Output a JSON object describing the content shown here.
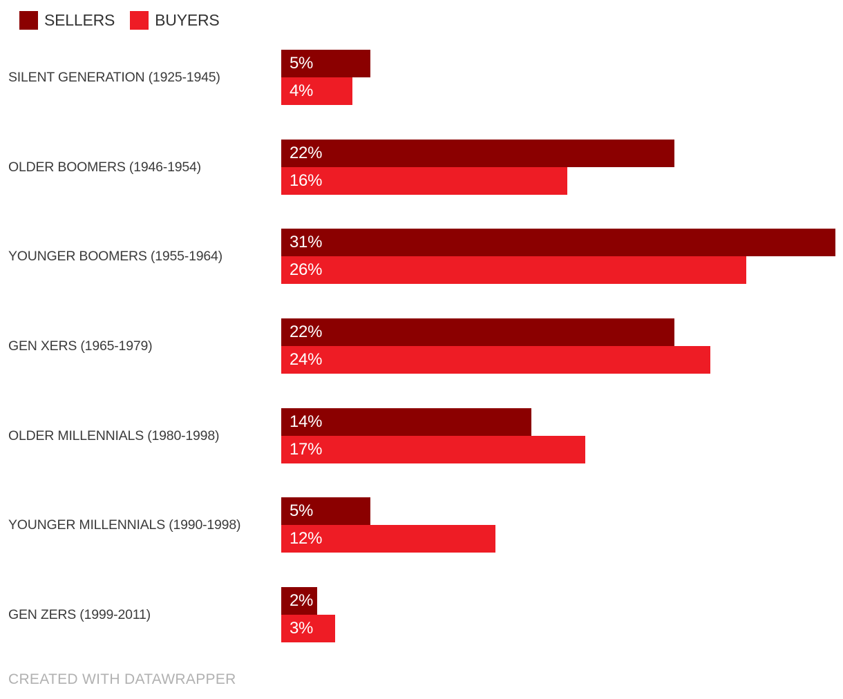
{
  "legend": {
    "items": [
      {
        "label": "SELLERS",
        "color": "#8b0000"
      },
      {
        "label": "BUYERS",
        "color": "#ee1c25"
      }
    ]
  },
  "footer": {
    "text": "CREATED WITH DATAWRAPPER"
  },
  "colors": {
    "sellers": "#8b0000",
    "buyers": "#ee1c25",
    "label_text": "#3b3b3b",
    "value_text": "#ffffff",
    "credit_text": "#b1b1b1",
    "background": "#ffffff"
  },
  "chart_data": {
    "type": "bar",
    "orientation": "horizontal",
    "title": "",
    "xlabel": "",
    "ylabel": "",
    "grid": false,
    "legend_position": "top-left",
    "value_suffix": "%",
    "xlim": [
      0,
      31
    ],
    "categories": [
      "SILENT GENERATION (1925-1945)",
      "OLDER BOOMERS (1946-1954)",
      "YOUNGER BOOMERS (1955-1964)",
      "GEN XERS (1965-1979)",
      "OLDER MILLENNIALS (1980-1998)",
      "YOUNGER MILLENNIALS (1990-1998)",
      "GEN ZERS (1999-2011)"
    ],
    "series": [
      {
        "name": "SELLERS",
        "color": "#8b0000",
        "values": [
          5,
          22,
          31,
          22,
          14,
          5,
          2
        ]
      },
      {
        "name": "BUYERS",
        "color": "#ee1c25",
        "values": [
          4,
          16,
          26,
          24,
          17,
          12,
          3
        ]
      }
    ]
  }
}
